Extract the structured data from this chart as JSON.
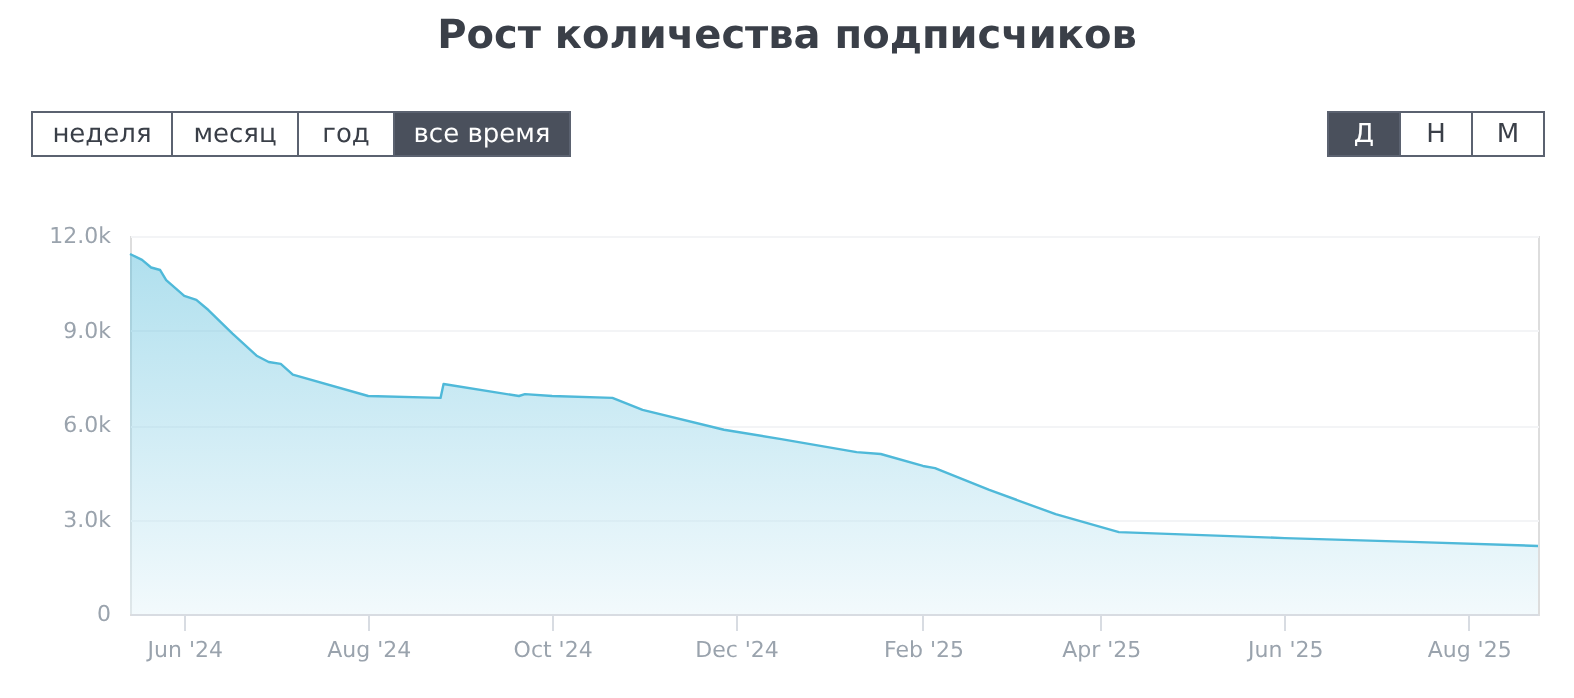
{
  "chart_data": {
    "type": "area",
    "title": "Рост количества подписчиков",
    "annotations": [
      "неделя",
      "месяц",
      "год",
      "все время",
      "Д",
      "Н",
      "М"
    ],
    "x": [
      "2024-05-14",
      "2024-05-18",
      "2024-05-21",
      "2024-05-24",
      "2024-05-26",
      "2024-06-01",
      "2024-06-05",
      "2024-06-09",
      "2024-06-17",
      "2024-06-25",
      "2024-06-29",
      "2024-07-03",
      "2024-07-07",
      "2024-08-01",
      "2024-08-25",
      "2024-08-26",
      "2024-09-20",
      "2024-09-22",
      "2024-10-01",
      "2024-10-21",
      "2024-10-31",
      "2024-11-27",
      "2024-12-16",
      "2025-01-10",
      "2025-01-18",
      "2025-02-01",
      "2025-02-05",
      "2025-02-23",
      "2025-03-17",
      "2025-04-07",
      "2025-06-01",
      "2025-07-13",
      "2025-08-24"
    ],
    "series": [
      {
        "color": "#4fb9d9",
        "values": [
          11430,
          11240,
          11000,
          10920,
          10600,
          10100,
          9970,
          9650,
          8900,
          8200,
          8000,
          7940,
          7600,
          6920,
          6860,
          7300,
          6920,
          6980,
          6920,
          6860,
          6480,
          5850,
          5550,
          5140,
          5080,
          4700,
          4630,
          3940,
          3170,
          2600,
          2410,
          2290,
          2160
        ]
      }
    ],
    "xlim": [
      "2024-05-14",
      "2025-08-24"
    ],
    "xticks": [
      {
        "value": "2024-06-01",
        "label": "Jun '24"
      },
      {
        "value": "2024-08-01",
        "label": "Aug '24"
      },
      {
        "value": "2024-10-01",
        "label": "Oct '24"
      },
      {
        "value": "2024-12-01",
        "label": "Dec '24"
      },
      {
        "value": "2025-02-01",
        "label": "Feb '25"
      },
      {
        "value": "2025-04-01",
        "label": "Apr '25"
      },
      {
        "value": "2025-06-01",
        "label": "Jun '25"
      },
      {
        "value": "2025-08-01",
        "label": "Aug '25"
      }
    ],
    "ylim": [
      0,
      12000
    ],
    "yticks": [
      0,
      {
        "value": 3000,
        "label": "3.0k"
      },
      {
        "value": 6000,
        "label": "6.0k"
      },
      {
        "value": 9000,
        "label": "9.0k"
      },
      {
        "value": 12000,
        "label": "12.0k"
      }
    ],
    "grid": "y",
    "marker": "none",
    "line_style": "solid"
  }
}
